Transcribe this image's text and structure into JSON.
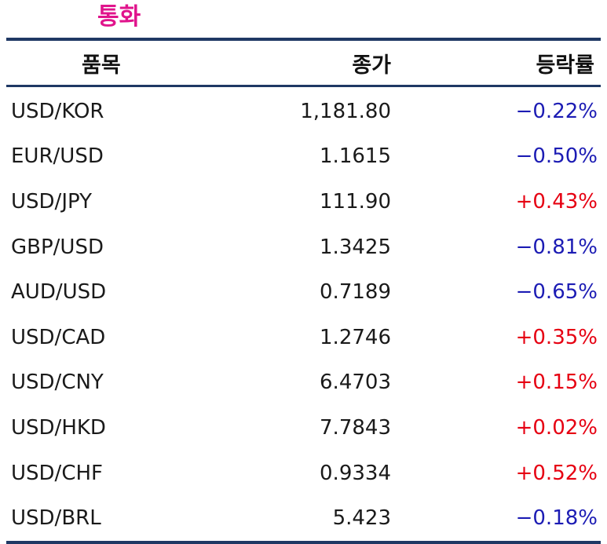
{
  "title": "통화",
  "colors": {
    "title": "#e0148c",
    "rule": "#1f3864",
    "up": "#e60012",
    "down": "#1c1cb4"
  },
  "header": {
    "item": "품목",
    "close": "종가",
    "change": "등락률"
  },
  "rows": [
    {
      "item": "USD/KOR",
      "close": "1,181.80",
      "change": "−0.22%",
      "dir": "down"
    },
    {
      "item": "EUR/USD",
      "close": "1.1615",
      "change": "−0.50%",
      "dir": "down"
    },
    {
      "item": "USD/JPY",
      "close": "111.90",
      "change": "+0.43%",
      "dir": "up"
    },
    {
      "item": "GBP/USD",
      "close": "1.3425",
      "change": "−0.81%",
      "dir": "down"
    },
    {
      "item": "AUD/USD",
      "close": "0.7189",
      "change": "−0.65%",
      "dir": "down"
    },
    {
      "item": "USD/CAD",
      "close": "1.2746",
      "change": "+0.35%",
      "dir": "up"
    },
    {
      "item": "USD/CNY",
      "close": "6.4703",
      "change": "+0.15%",
      "dir": "up"
    },
    {
      "item": "USD/HKD",
      "close": "7.7843",
      "change": "+0.02%",
      "dir": "up"
    },
    {
      "item": "USD/CHF",
      "close": "0.9334",
      "change": "+0.52%",
      "dir": "up"
    },
    {
      "item": "USD/BRL",
      "close": "5.423",
      "change": "−0.18%",
      "dir": "down"
    }
  ]
}
